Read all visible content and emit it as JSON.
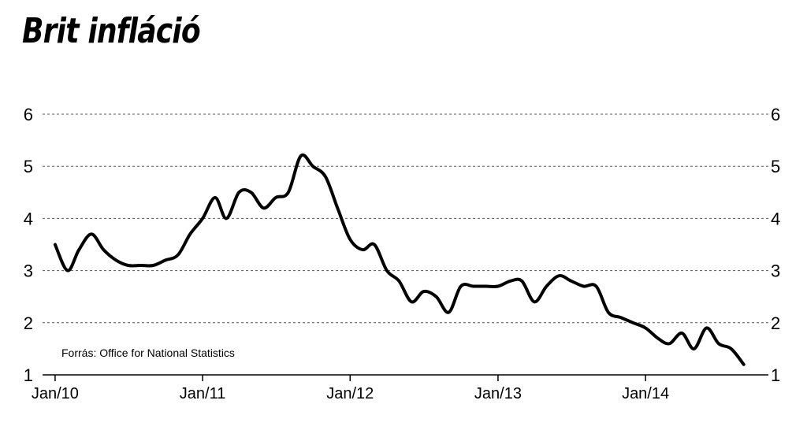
{
  "title": "Brit infláció",
  "source": "Forrás: Office for National Statistics",
  "chart_data": {
    "type": "line",
    "title": "Brit infláció",
    "xlabel": "",
    "ylabel": "",
    "ylim": [
      1,
      6
    ],
    "xlim": [
      "2009-12-01",
      "2014-11-01"
    ],
    "yticks": [
      1,
      2,
      3,
      4,
      5,
      6
    ],
    "yticks_right": [
      1,
      2,
      3,
      4,
      5,
      6
    ],
    "xtick_labels": [
      {
        "date": "2010-01-01",
        "label": "Jan/10"
      },
      {
        "date": "2011-01-01",
        "label": "Jan/11"
      },
      {
        "date": "2012-01-01",
        "label": "Jan/12"
      },
      {
        "date": "2013-01-01",
        "label": "Jan/13"
      },
      {
        "date": "2014-01-01",
        "label": "Jan/14"
      }
    ],
    "grid": true,
    "series": [
      {
        "color": "#000000",
        "points": [
          [
            "2010-01",
            3.5
          ],
          [
            "2010-02",
            3.0
          ],
          [
            "2010-03",
            3.4
          ],
          [
            "2010-04",
            3.7
          ],
          [
            "2010-05",
            3.4
          ],
          [
            "2010-06",
            3.2
          ],
          [
            "2010-07",
            3.1
          ],
          [
            "2010-08",
            3.1
          ],
          [
            "2010-09",
            3.1
          ],
          [
            "2010-10",
            3.2
          ],
          [
            "2010-11",
            3.3
          ],
          [
            "2010-12",
            3.7
          ],
          [
            "2011-01",
            4.0
          ],
          [
            "2011-02",
            4.4
          ],
          [
            "2011-03",
            4.0
          ],
          [
            "2011-04",
            4.5
          ],
          [
            "2011-05",
            4.5
          ],
          [
            "2011-06",
            4.2
          ],
          [
            "2011-07",
            4.4
          ],
          [
            "2011-08",
            4.5
          ],
          [
            "2011-09",
            5.2
          ],
          [
            "2011-10",
            5.0
          ],
          [
            "2011-11",
            4.8
          ],
          [
            "2011-12",
            4.2
          ],
          [
            "2012-01",
            3.6
          ],
          [
            "2012-02",
            3.4
          ],
          [
            "2012-03",
            3.5
          ],
          [
            "2012-04",
            3.0
          ],
          [
            "2012-05",
            2.8
          ],
          [
            "2012-06",
            2.4
          ],
          [
            "2012-07",
            2.6
          ],
          [
            "2012-08",
            2.5
          ],
          [
            "2012-09",
            2.2
          ],
          [
            "2012-10",
            2.7
          ],
          [
            "2012-11",
            2.7
          ],
          [
            "2012-12",
            2.7
          ],
          [
            "2013-01",
            2.7
          ],
          [
            "2013-02",
            2.8
          ],
          [
            "2013-03",
            2.8
          ],
          [
            "2013-04",
            2.4
          ],
          [
            "2013-05",
            2.7
          ],
          [
            "2013-06",
            2.9
          ],
          [
            "2013-07",
            2.8
          ],
          [
            "2013-08",
            2.7
          ],
          [
            "2013-09",
            2.7
          ],
          [
            "2013-10",
            2.2
          ],
          [
            "2013-11",
            2.1
          ],
          [
            "2013-12",
            2.0
          ],
          [
            "2014-01",
            1.9
          ],
          [
            "2014-02",
            1.7
          ],
          [
            "2014-03",
            1.6
          ],
          [
            "2014-04",
            1.8
          ],
          [
            "2014-05",
            1.5
          ],
          [
            "2014-06",
            1.9
          ],
          [
            "2014-07",
            1.6
          ],
          [
            "2014-08",
            1.5
          ],
          [
            "2014-09",
            1.2
          ]
        ]
      }
    ]
  }
}
